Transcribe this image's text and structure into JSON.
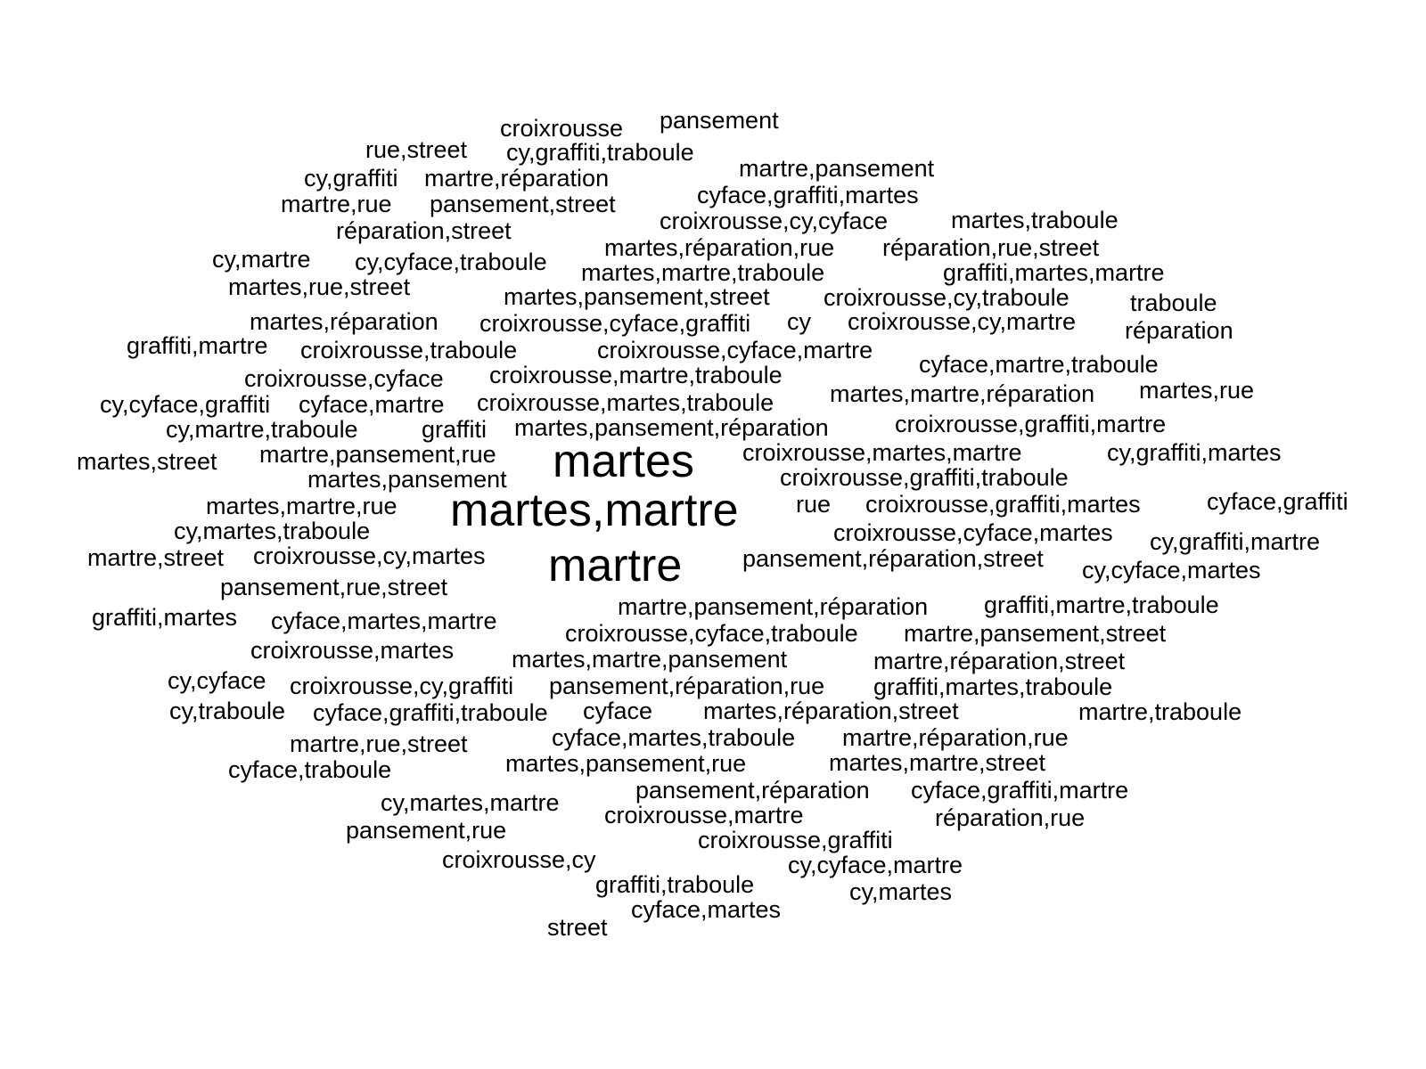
{
  "word_cloud": {
    "text_color": "#000000",
    "background_color": "#ffffff",
    "words": [
      {
        "text": "croixrousse",
        "weight": 1
      },
      {
        "text": "pansement",
        "weight": 1
      },
      {
        "text": "rue,street",
        "weight": 1
      },
      {
        "text": "cy,graffiti,traboule",
        "weight": 1
      },
      {
        "text": "martre,pansement",
        "weight": 1
      },
      {
        "text": "cy,graffiti",
        "weight": 1
      },
      {
        "text": "martre,réparation",
        "weight": 1
      },
      {
        "text": "cyface,graffiti,martes",
        "weight": 1
      },
      {
        "text": "martre,rue",
        "weight": 1
      },
      {
        "text": "pansement,street",
        "weight": 1
      },
      {
        "text": "croixrousse,cy,cyface",
        "weight": 1
      },
      {
        "text": "martes,traboule",
        "weight": 1
      },
      {
        "text": "réparation,street",
        "weight": 1
      },
      {
        "text": "martes,réparation,rue",
        "weight": 1
      },
      {
        "text": "réparation,rue,street",
        "weight": 1
      },
      {
        "text": "cy,martre",
        "weight": 1
      },
      {
        "text": "cy,cyface,traboule",
        "weight": 1
      },
      {
        "text": "martes,martre,traboule",
        "weight": 1
      },
      {
        "text": "graffiti,martes,martre",
        "weight": 1
      },
      {
        "text": "martes,rue,street",
        "weight": 1
      },
      {
        "text": "martes,pansement,street",
        "weight": 1
      },
      {
        "text": "croixrousse,cy,traboule",
        "weight": 1
      },
      {
        "text": "traboule",
        "weight": 1
      },
      {
        "text": "martes,réparation",
        "weight": 1
      },
      {
        "text": "croixrousse,cyface,graffiti",
        "weight": 1
      },
      {
        "text": "cy",
        "weight": 1
      },
      {
        "text": "croixrousse,cy,martre",
        "weight": 1
      },
      {
        "text": "réparation",
        "weight": 1
      },
      {
        "text": "graffiti,martre",
        "weight": 1
      },
      {
        "text": "croixrousse,traboule",
        "weight": 1
      },
      {
        "text": "croixrousse,cyface,martre",
        "weight": 1
      },
      {
        "text": "cyface,martre,traboule",
        "weight": 1
      },
      {
        "text": "croixrousse,cyface",
        "weight": 1
      },
      {
        "text": "croixrousse,martre,traboule",
        "weight": 1
      },
      {
        "text": "cy,cyface,graffiti",
        "weight": 1
      },
      {
        "text": "cyface,martre",
        "weight": 1
      },
      {
        "text": "croixrousse,martes,traboule",
        "weight": 1
      },
      {
        "text": "martes,martre,réparation",
        "weight": 1
      },
      {
        "text": "martes,rue",
        "weight": 1
      },
      {
        "text": "cy,martre,traboule",
        "weight": 1
      },
      {
        "text": "graffiti",
        "weight": 1
      },
      {
        "text": "martes,pansement,réparation",
        "weight": 1
      },
      {
        "text": "croixrousse,graffiti,martre",
        "weight": 1
      },
      {
        "text": "martes,street",
        "weight": 1
      },
      {
        "text": "martre,pansement,rue",
        "weight": 1
      },
      {
        "text": "martes",
        "weight": 3
      },
      {
        "text": "croixrousse,martes,martre",
        "weight": 1
      },
      {
        "text": "cy,graffiti,martes",
        "weight": 1
      },
      {
        "text": "martes,pansement",
        "weight": 1
      },
      {
        "text": "croixrousse,graffiti,traboule",
        "weight": 1
      },
      {
        "text": "martes,martre,rue",
        "weight": 1
      },
      {
        "text": "martes,martre",
        "weight": 3
      },
      {
        "text": "rue",
        "weight": 1
      },
      {
        "text": "croixrousse,graffiti,martes",
        "weight": 1
      },
      {
        "text": "cyface,graffiti",
        "weight": 1
      },
      {
        "text": "cy,martes,traboule",
        "weight": 1
      },
      {
        "text": "croixrousse,cyface,martes",
        "weight": 1
      },
      {
        "text": "cy,graffiti,martre",
        "weight": 1
      },
      {
        "text": "martre,street",
        "weight": 1
      },
      {
        "text": "croixrousse,cy,martes",
        "weight": 1
      },
      {
        "text": "martre",
        "weight": 3
      },
      {
        "text": "pansement,réparation,street",
        "weight": 1
      },
      {
        "text": "cy,cyface,martes",
        "weight": 1
      },
      {
        "text": "pansement,rue,street",
        "weight": 1
      },
      {
        "text": "martre,pansement,réparation",
        "weight": 1
      },
      {
        "text": "graffiti,martre,traboule",
        "weight": 1
      },
      {
        "text": "graffiti,martes",
        "weight": 1
      },
      {
        "text": "cyface,martes,martre",
        "weight": 1
      },
      {
        "text": "croixrousse,cyface,traboule",
        "weight": 1
      },
      {
        "text": "martre,pansement,street",
        "weight": 1
      },
      {
        "text": "croixrousse,martes",
        "weight": 1
      },
      {
        "text": "martes,martre,pansement",
        "weight": 1
      },
      {
        "text": "martre,réparation,street",
        "weight": 1
      },
      {
        "text": "cy,cyface",
        "weight": 1
      },
      {
        "text": "croixrousse,cy,graffiti",
        "weight": 1
      },
      {
        "text": "pansement,réparation,rue",
        "weight": 1
      },
      {
        "text": "graffiti,martes,traboule",
        "weight": 1
      },
      {
        "text": "cy,traboule",
        "weight": 1
      },
      {
        "text": "cyface,graffiti,traboule",
        "weight": 1
      },
      {
        "text": "cyface",
        "weight": 1
      },
      {
        "text": "martes,réparation,street",
        "weight": 1
      },
      {
        "text": "martre,traboule",
        "weight": 1
      },
      {
        "text": "martre,rue,street",
        "weight": 1
      },
      {
        "text": "cyface,martes,traboule",
        "weight": 1
      },
      {
        "text": "martre,réparation,rue",
        "weight": 1
      },
      {
        "text": "cyface,traboule",
        "weight": 1
      },
      {
        "text": "martes,pansement,rue",
        "weight": 1
      },
      {
        "text": "martes,martre,street",
        "weight": 1
      },
      {
        "text": "pansement,réparation",
        "weight": 1
      },
      {
        "text": "cyface,graffiti,martre",
        "weight": 1
      },
      {
        "text": "cy,martes,martre",
        "weight": 1
      },
      {
        "text": "croixrousse,martre",
        "weight": 1
      },
      {
        "text": "réparation,rue",
        "weight": 1
      },
      {
        "text": "pansement,rue",
        "weight": 1
      },
      {
        "text": "croixrousse,graffiti",
        "weight": 1
      },
      {
        "text": "croixrousse,cy",
        "weight": 1
      },
      {
        "text": "cy,cyface,martre",
        "weight": 1
      },
      {
        "text": "graffiti,traboule",
        "weight": 1
      },
      {
        "text": "cy,martes",
        "weight": 1
      },
      {
        "text": "cyface,martes",
        "weight": 1
      },
      {
        "text": "street",
        "weight": 1
      }
    ]
  }
}
